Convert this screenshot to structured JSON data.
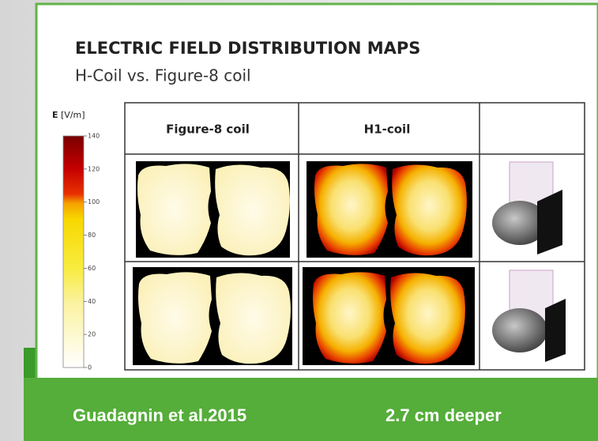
{
  "header": {
    "title": "ELECTRIC FIELD DISTRIBUTION MAPS",
    "subtitle": "H-Coil vs. Figure-8 coil"
  },
  "colorbar": {
    "symbol": "E",
    "unit": "[V/m]",
    "ticks": [
      140,
      120,
      100,
      80,
      60,
      40,
      20,
      0
    ]
  },
  "table": {
    "columns": [
      "Figure-8 coil",
      "H1-coil"
    ]
  },
  "footer": {
    "citation": "Guadagnin et al.2015",
    "note": "2.7 cm deeper"
  }
}
